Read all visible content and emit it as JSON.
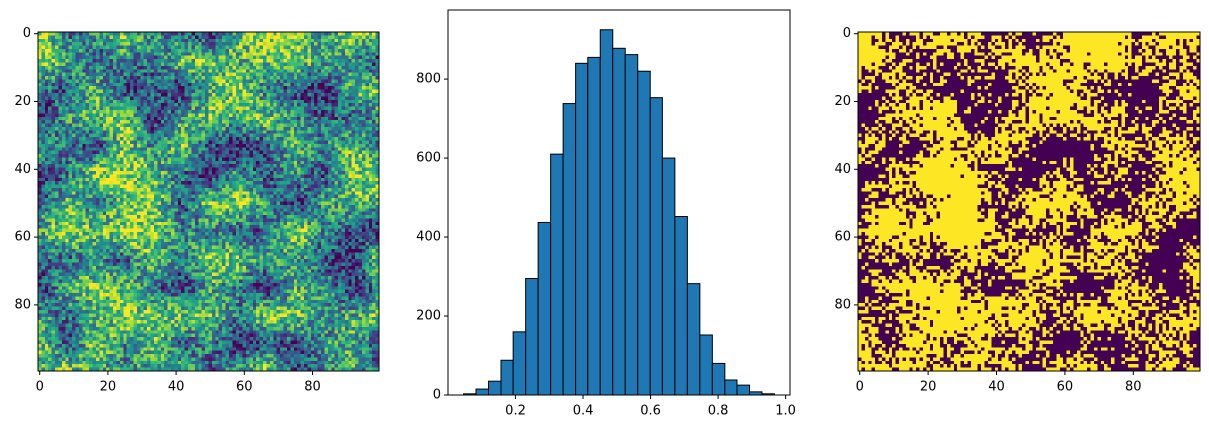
{
  "chart_data": [
    {
      "type": "image",
      "xlim": [
        -0.5,
        99.5
      ],
      "ylim": [
        99.5,
        -0.5
      ],
      "xticks": [
        0,
        20,
        40,
        60,
        80
      ],
      "yticks": [
        0,
        20,
        40,
        60,
        80
      ],
      "colormap": "viridis"
    },
    {
      "type": "hist",
      "bins": [
        0.046,
        0.083,
        0.12,
        0.157,
        0.193,
        0.23,
        0.267,
        0.304,
        0.341,
        0.378,
        0.414,
        0.451,
        0.488,
        0.525,
        0.562,
        0.599,
        0.635,
        0.672,
        0.709,
        0.746,
        0.783,
        0.82,
        0.856,
        0.893,
        0.93,
        0.967
      ],
      "counts": [
        3,
        15,
        35,
        88,
        160,
        295,
        437,
        610,
        738,
        840,
        855,
        925,
        878,
        862,
        820,
        753,
        600,
        452,
        282,
        152,
        80,
        38,
        25,
        8,
        3
      ],
      "color": "#1f77b4",
      "edgecolor": "#000000",
      "xlim": [
        0.0,
        1.013
      ],
      "ylim": [
        0,
        975
      ],
      "xticks": [
        0.2,
        0.4,
        0.6,
        0.8,
        {
          "value": 1.0,
          "label": "1.0"
        }
      ],
      "yticks": [
        0,
        200,
        400,
        600,
        800
      ]
    },
    {
      "type": "image",
      "xlim": [
        -0.5,
        99.5
      ],
      "ylim": [
        99.5,
        -0.5
      ],
      "xticks": [
        0,
        20,
        40,
        60,
        80
      ],
      "yticks": [
        0,
        20,
        40,
        60,
        80
      ],
      "colormap": "viridis-binary"
    }
  ]
}
